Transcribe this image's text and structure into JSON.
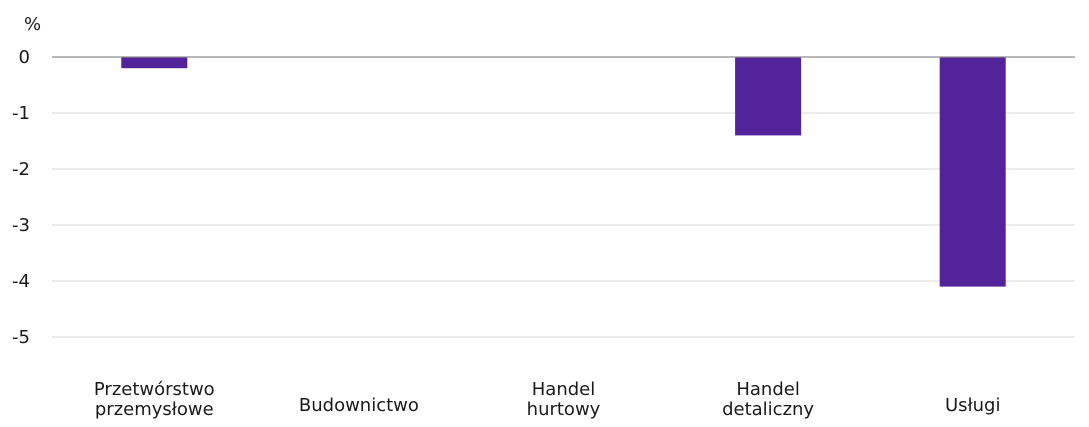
{
  "chart_data": {
    "type": "bar",
    "unit_label": "%",
    "categories": [
      [
        "Przetwórstwo",
        "przemysłowe"
      ],
      [
        "Budownictwo"
      ],
      [
        "Handel",
        "hurtowy"
      ],
      [
        "Handel",
        "detaliczny"
      ],
      [
        "Usługi"
      ]
    ],
    "values": [
      -0.2,
      0,
      0,
      -1.4,
      -4.1
    ],
    "ylim": [
      -5,
      0
    ],
    "yticks": [
      0,
      -1,
      -2,
      -3,
      -4,
      -5
    ],
    "grid": true,
    "bar_color": "#52239a"
  }
}
